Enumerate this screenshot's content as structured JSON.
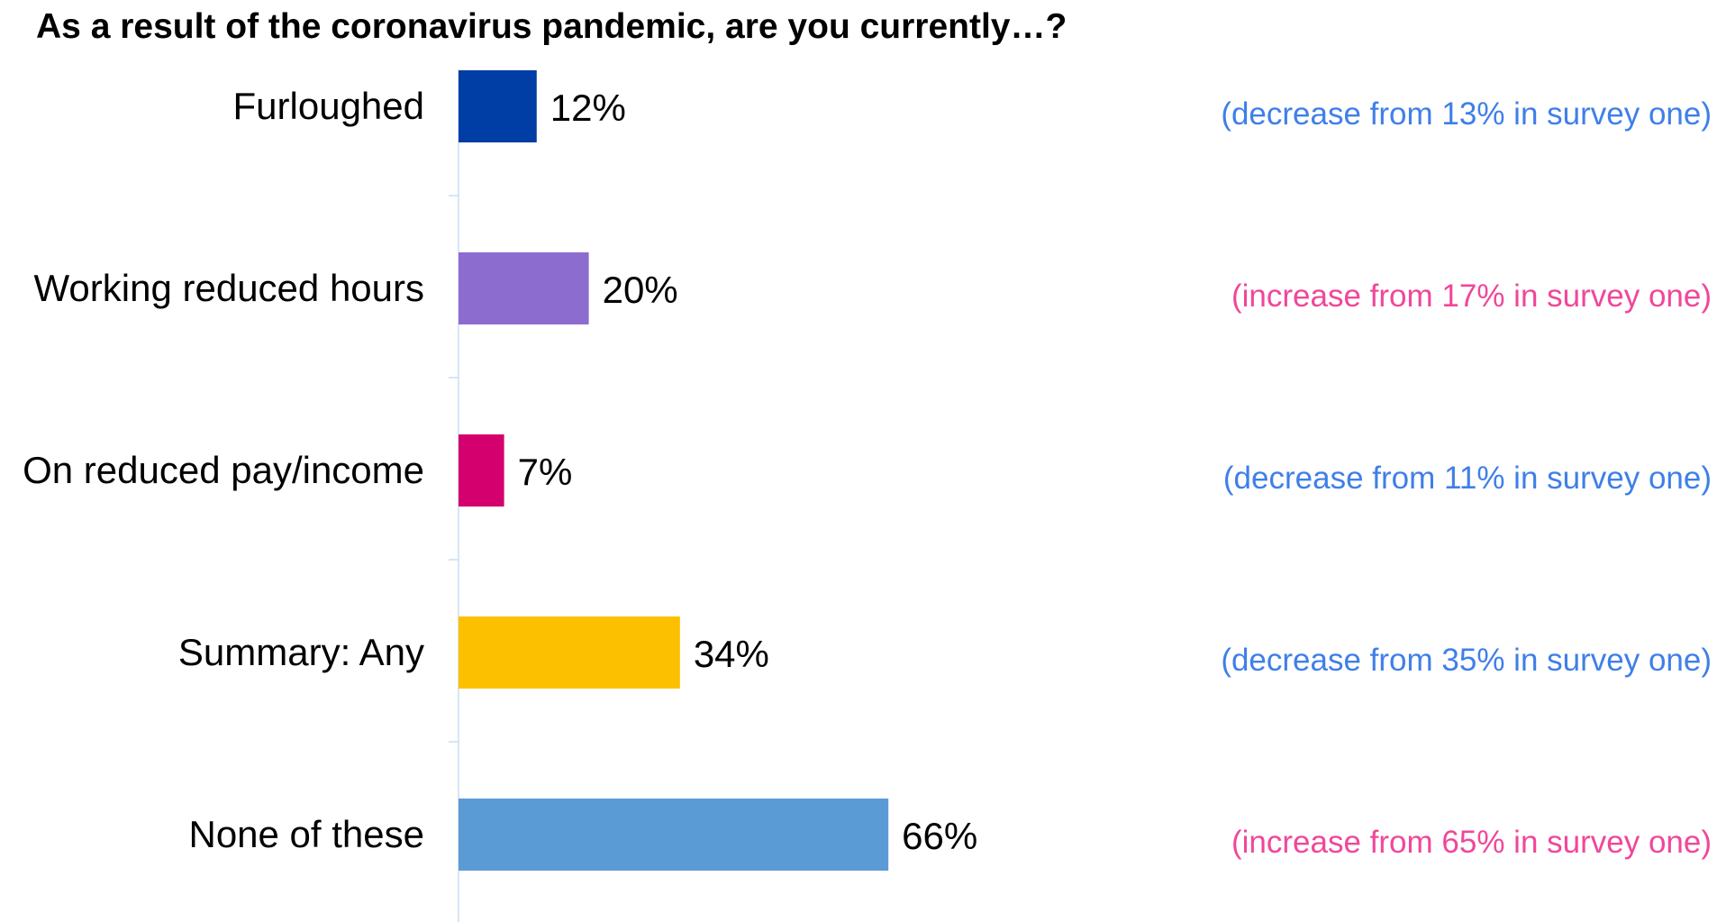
{
  "chart_data": {
    "type": "bar",
    "orientation": "horizontal",
    "title": "As a result of the coronavirus pandemic, are you currently…?",
    "categories": [
      "Furloughed",
      "Working reduced hours",
      "On reduced pay/income",
      "Summary: Any",
      "None of these"
    ],
    "values": [
      12,
      20,
      7,
      34,
      66
    ],
    "value_labels": [
      "12%",
      "20%",
      "7%",
      "34%",
      "66%"
    ],
    "bar_colors": [
      "#003DA5",
      "#8D6CD0",
      "#D4006D",
      "#FCC000",
      "#5B9BD5"
    ],
    "annotations": [
      {
        "text": "(decrease from 13% in survey one)",
        "color": "#3F7FE8"
      },
      {
        "text": "(increase from 17% in survey one)",
        "color": "#F0479A"
      },
      {
        "text": "(decrease from 11% in survey one)",
        "color": "#3F7FE8"
      },
      {
        "text": "(decrease from 35% in survey one)",
        "color": "#3F7FE8"
      },
      {
        "text": "(increase from 65% in survey one)",
        "color": "#F0479A"
      }
    ],
    "xlim": [
      0,
      100
    ],
    "grid": false,
    "legend": "none",
    "axis_color": "#C9DDF2"
  }
}
